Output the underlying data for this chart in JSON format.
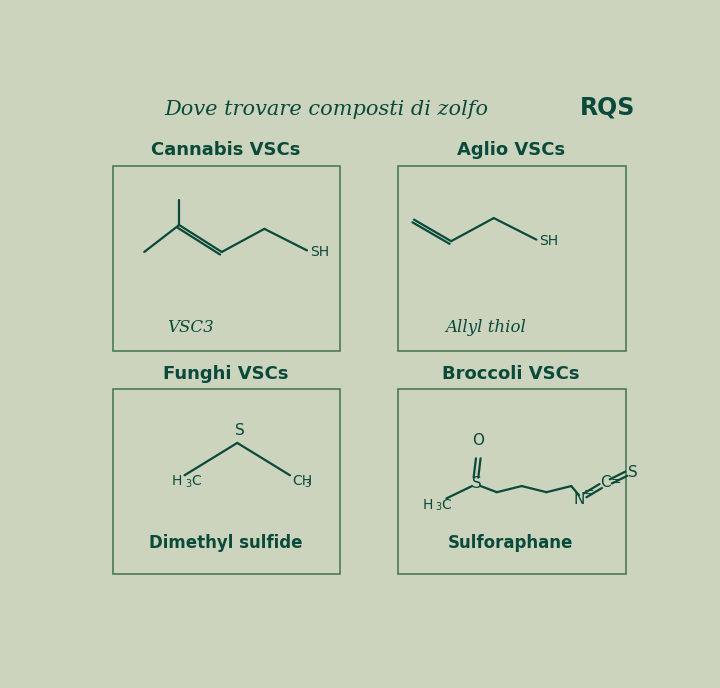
{
  "bg_color": "#cdd4be",
  "box_color": "#4a7a5a",
  "text_color": "#0a4a3a",
  "title": "Dove trovare composti di zolfo",
  "rqs_text": "RQS",
  "title_fontsize": 15,
  "section_titles": [
    "Cannabis VSCs",
    "Aglio VSCs",
    "Funghi VSCs",
    "Broccoli VSCs"
  ],
  "compound_names": [
    "VSC3",
    "Allyl thiol",
    "Dimethyl sulfide",
    "Sulforaphane"
  ],
  "line_color": "#0a4a3a",
  "line_width": 1.6
}
